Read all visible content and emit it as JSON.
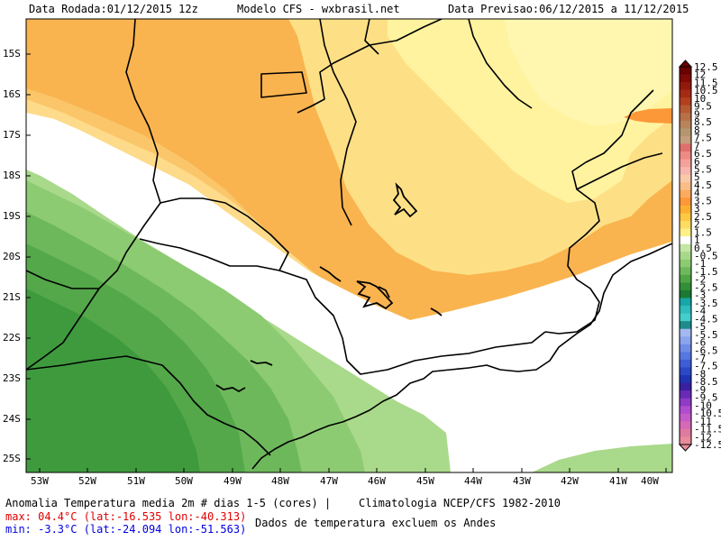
{
  "header": {
    "run_date": "Data Rodada:01/12/2015 12z",
    "model": "Modelo CFS - wxbrasil.net",
    "forecast_period": "Data Previsao:06/12/2015 a 11/12/2015"
  },
  "footer": {
    "variable": "Anomalia Temperatura media 2m # dias 1-5 (cores) |",
    "climatology": "Climatologia NCEP/CFS 1982-2010",
    "max_text": "max: 04.4°C (lat:-16.535 lon:-40.313)",
    "min_text": "min: -3.3°C (lat:-24.094 lon:-51.563)",
    "note": "Dados de temperatura excluem os Andes"
  },
  "axes": {
    "lat_labels": [
      "15S",
      "16S",
      "17S",
      "18S",
      "19S",
      "20S",
      "21S",
      "22S",
      "23S",
      "24S",
      "25S"
    ],
    "lon_labels": [
      "53W",
      "52W",
      "51W",
      "50W",
      "49W",
      "48W",
      "47W",
      "46W",
      "45W",
      "44W",
      "43W",
      "42W",
      "41W",
      "40W"
    ]
  },
  "colorbar": {
    "labels": [
      "12.5",
      "12",
      "11.5",
      "10.5",
      "10",
      "9.5",
      "9",
      "8.5",
      "8",
      "7.5",
      "7",
      "6.5",
      "6",
      "5.5",
      "5",
      "4.5",
      "4",
      "3.5",
      "3",
      "2.5",
      "2",
      "1.5",
      "1",
      "0.5",
      "-0.5",
      "-1",
      "-1.5",
      "-2",
      "-2.5",
      "-3",
      "-3.5",
      "-4",
      "-4.5",
      "-5",
      "-5.5",
      "-6",
      "-6.5",
      "-7",
      "-7.5",
      "-8",
      "-8.5",
      "-9",
      "-9.5",
      "-10",
      "-10.5",
      "-11",
      "-11.5",
      "-12",
      "-12.5"
    ],
    "colors": [
      "#6b0000",
      "#7f0b06",
      "#921a0c",
      "#a52a14",
      "#b2401e",
      "#b75a33",
      "#b87047",
      "#b8845c",
      "#b49670",
      "#c59e7d",
      "#e0706b",
      "#ef8a84",
      "#f4a19a",
      "#f6b5ad",
      "#f9c9a8",
      "#fbbd87",
      "#fcaa5d",
      "#fd9838",
      "#fcb032",
      "#fec844",
      "#fedc62",
      "#fff089",
      "#ffffff",
      "#c6e6a5",
      "#a8d98a",
      "#8ccb72",
      "#6eb85c",
      "#4fa545",
      "#338f37",
      "#1a7a33",
      "#18a6a6",
      "#2fbcbc",
      "#45cccc",
      "#1e8b8b",
      "#a3b8f0",
      "#8aa5ee",
      "#6f8de8",
      "#5677e2",
      "#3d5cd6",
      "#2b48c7",
      "#1f33b4",
      "#3a1fa0",
      "#6a2ab8",
      "#8e3bc6",
      "#b04ccf",
      "#c55bc9",
      "#d769b6",
      "#e07ba0",
      "#e88c9c"
    ]
  }
}
